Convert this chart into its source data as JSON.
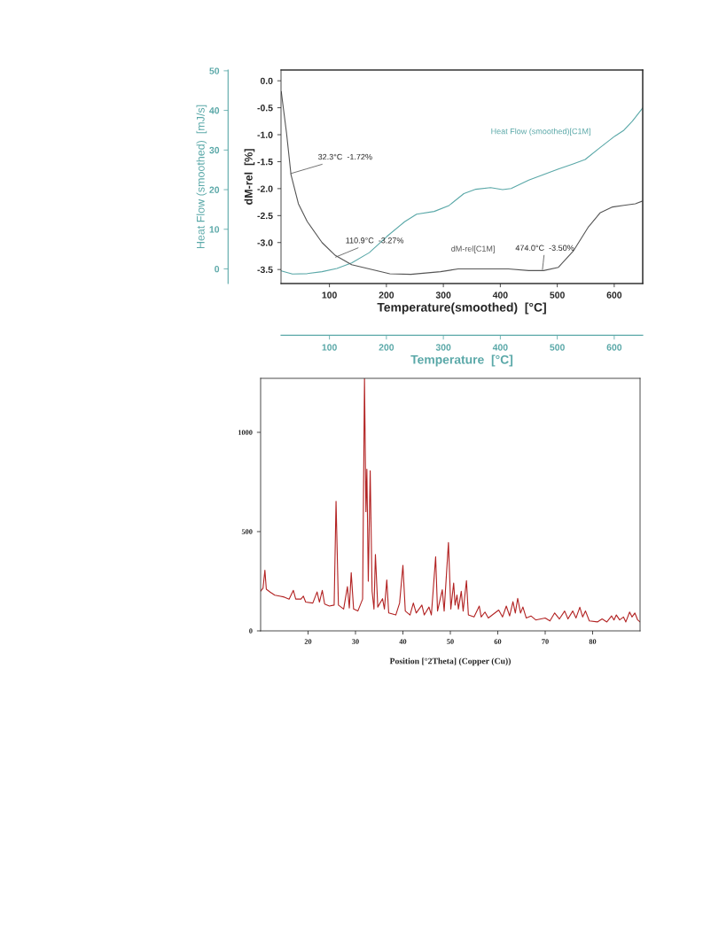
{
  "chart_data": [
    {
      "type": "line",
      "xlabel": "Temperature(smoothed)  [°C]",
      "ylabel": "dM-rel  [%]",
      "y2label": "Heat Flow (smoothed)  [mJ/s]",
      "x2label": "Temperature  [°C]",
      "xlim": [
        15,
        650
      ],
      "xticks": [
        100,
        200,
        300,
        400,
        500,
        600
      ],
      "x2lim": [
        15,
        650
      ],
      "x2ticks": [
        100,
        200,
        300,
        400,
        500,
        600
      ],
      "ylim": [
        -3.76,
        0.2
      ],
      "yticks": [
        {
          "value": 0,
          "label": "0.0"
        },
        {
          "value": -0.5,
          "label": "-0.5"
        },
        {
          "value": -1.0,
          "label": "-1.0"
        },
        {
          "value": -1.5,
          "label": "-1.5"
        },
        {
          "value": -2.0,
          "label": "-2.0"
        },
        {
          "value": -2.5,
          "label": "-2.5"
        },
        {
          "value": -3.0,
          "label": "-3.0"
        },
        {
          "value": -3.5,
          "label": "-3.5"
        }
      ],
      "y2lim": [
        -3.7,
        50.2
      ],
      "y2ticks": [
        0,
        10,
        20,
        30,
        40,
        50
      ],
      "grid": false,
      "series": [
        {
          "name": "dM-rel[C1M]",
          "color": "#555555",
          "x": [
            15.4,
            24.7,
            32.5,
            45.5,
            61,
            87,
            110.4,
            139,
            170,
            206,
            243,
            295,
            326,
            373,
            414,
            450,
            476,
            502,
            528,
            554,
            575,
            597,
            617,
            637,
            650
          ],
          "values": [
            -0.2,
            -0.97,
            -1.74,
            -2.28,
            -2.61,
            -3.0,
            -3.24,
            -3.41,
            -3.49,
            -3.58,
            -3.59,
            -3.54,
            -3.49,
            -3.49,
            -3.49,
            -3.52,
            -3.52,
            -3.46,
            -3.16,
            -2.72,
            -2.45,
            -2.34,
            -2.31,
            -2.28,
            -2.23
          ]
        },
        {
          "name": "Heat Flow (smoothed)[C1M]",
          "color": "#5aa8a8",
          "axis": "y2",
          "x": [
            15.4,
            35,
            61,
            87,
            113,
            139,
            170,
            201,
            232,
            253,
            284,
            310,
            336,
            357,
            383,
            404,
            419,
            450,
            476,
            502,
            528,
            549,
            575,
            601,
            617,
            632,
            650
          ],
          "values": [
            -0.5,
            -1.3,
            -1.2,
            -0.7,
            0.1,
            1.5,
            4.1,
            8.2,
            11.9,
            13.8,
            14.5,
            16.0,
            19.0,
            20.1,
            20.5,
            20.0,
            20.3,
            22.4,
            23.8,
            25.2,
            26.5,
            27.6,
            30.6,
            33.5,
            35.0,
            37.3,
            40.6
          ]
        }
      ],
      "annotations": [
        {
          "text": "32.3°C  -1.72%",
          "x": 32.3,
          "y": -1.72
        },
        {
          "text": "110.9°C  -3.27%",
          "x": 110.9,
          "y": -3.27
        },
        {
          "text": "474.0°C  -3.50%",
          "x": 474.0,
          "y": -3.5
        }
      ]
    },
    {
      "type": "line",
      "xlabel": "Position [°2Theta] (Copper (Cu))",
      "xlim": [
        10,
        90
      ],
      "xticks": [
        20,
        30,
        40,
        50,
        60,
        70,
        80
      ],
      "ylim": [
        0,
        1272
      ],
      "yticks": [
        0,
        500,
        1000
      ],
      "grid": false,
      "series": [
        {
          "color": "#b22222",
          "x": [
            10.0,
            10.5,
            10.9,
            11.2,
            12,
            13,
            14,
            15,
            16,
            16.9,
            17.4,
            18.5,
            19,
            19.5,
            21,
            21.9,
            22.4,
            23.0,
            23.5,
            24.5,
            25.5,
            25.9,
            26.4,
            27.5,
            28.3,
            28.7,
            29.1,
            29.6,
            30.5,
            31.5,
            31.9,
            32.2,
            32.4,
            32.7,
            33.1,
            33.5,
            33.9,
            34.2,
            34.7,
            35.7,
            36.1,
            36.6,
            37.0,
            38.5,
            39.3,
            40.0,
            40.5,
            41.5,
            42.2,
            42.8,
            44.0,
            44.5,
            45.5,
            46.0,
            46.9,
            47.3,
            48.3,
            48.7,
            49.6,
            50.1,
            50.7,
            51.0,
            51.4,
            51.7,
            52.3,
            52.7,
            53.4,
            53.8,
            55,
            56.1,
            56.5,
            57.3,
            58,
            60.2,
            61,
            61.8,
            62.5,
            63.2,
            63.7,
            64.2,
            64.8,
            65.3,
            66,
            67,
            68,
            70,
            71,
            72,
            73,
            74.1,
            74.8,
            75.8,
            76.5,
            77.3,
            77.9,
            78.5,
            79.3,
            81,
            82,
            83,
            84,
            84.5,
            85,
            85.7,
            86.5,
            87,
            87.8,
            88.3,
            88.9,
            89.5,
            90
          ],
          "values": [
            200,
            215,
            305,
            210,
            195,
            180,
            175,
            170,
            160,
            204,
            160,
            160,
            175,
            145,
            140,
            196,
            145,
            204,
            135,
            125,
            130,
            653,
            130,
            110,
            223,
            115,
            293,
            110,
            100,
            160,
            1270,
            600,
            814,
            250,
            807,
            200,
            110,
            385,
            120,
            162,
            110,
            256,
            90,
            80,
            140,
            330,
            100,
            80,
            140,
            90,
            130,
            80,
            120,
            80,
            373,
            100,
            207,
            100,
            445,
            110,
            241,
            130,
            180,
            110,
            199,
            100,
            253,
            80,
            70,
            125,
            70,
            95,
            65,
            105,
            70,
            125,
            75,
            147,
            90,
            164,
            90,
            120,
            65,
            75,
            55,
            65,
            50,
            90,
            60,
            100,
            60,
            100,
            65,
            119,
            70,
            100,
            50,
            45,
            60,
            45,
            75,
            55,
            80,
            55,
            70,
            45,
            95,
            70,
            90,
            55,
            45
          ]
        }
      ]
    }
  ]
}
